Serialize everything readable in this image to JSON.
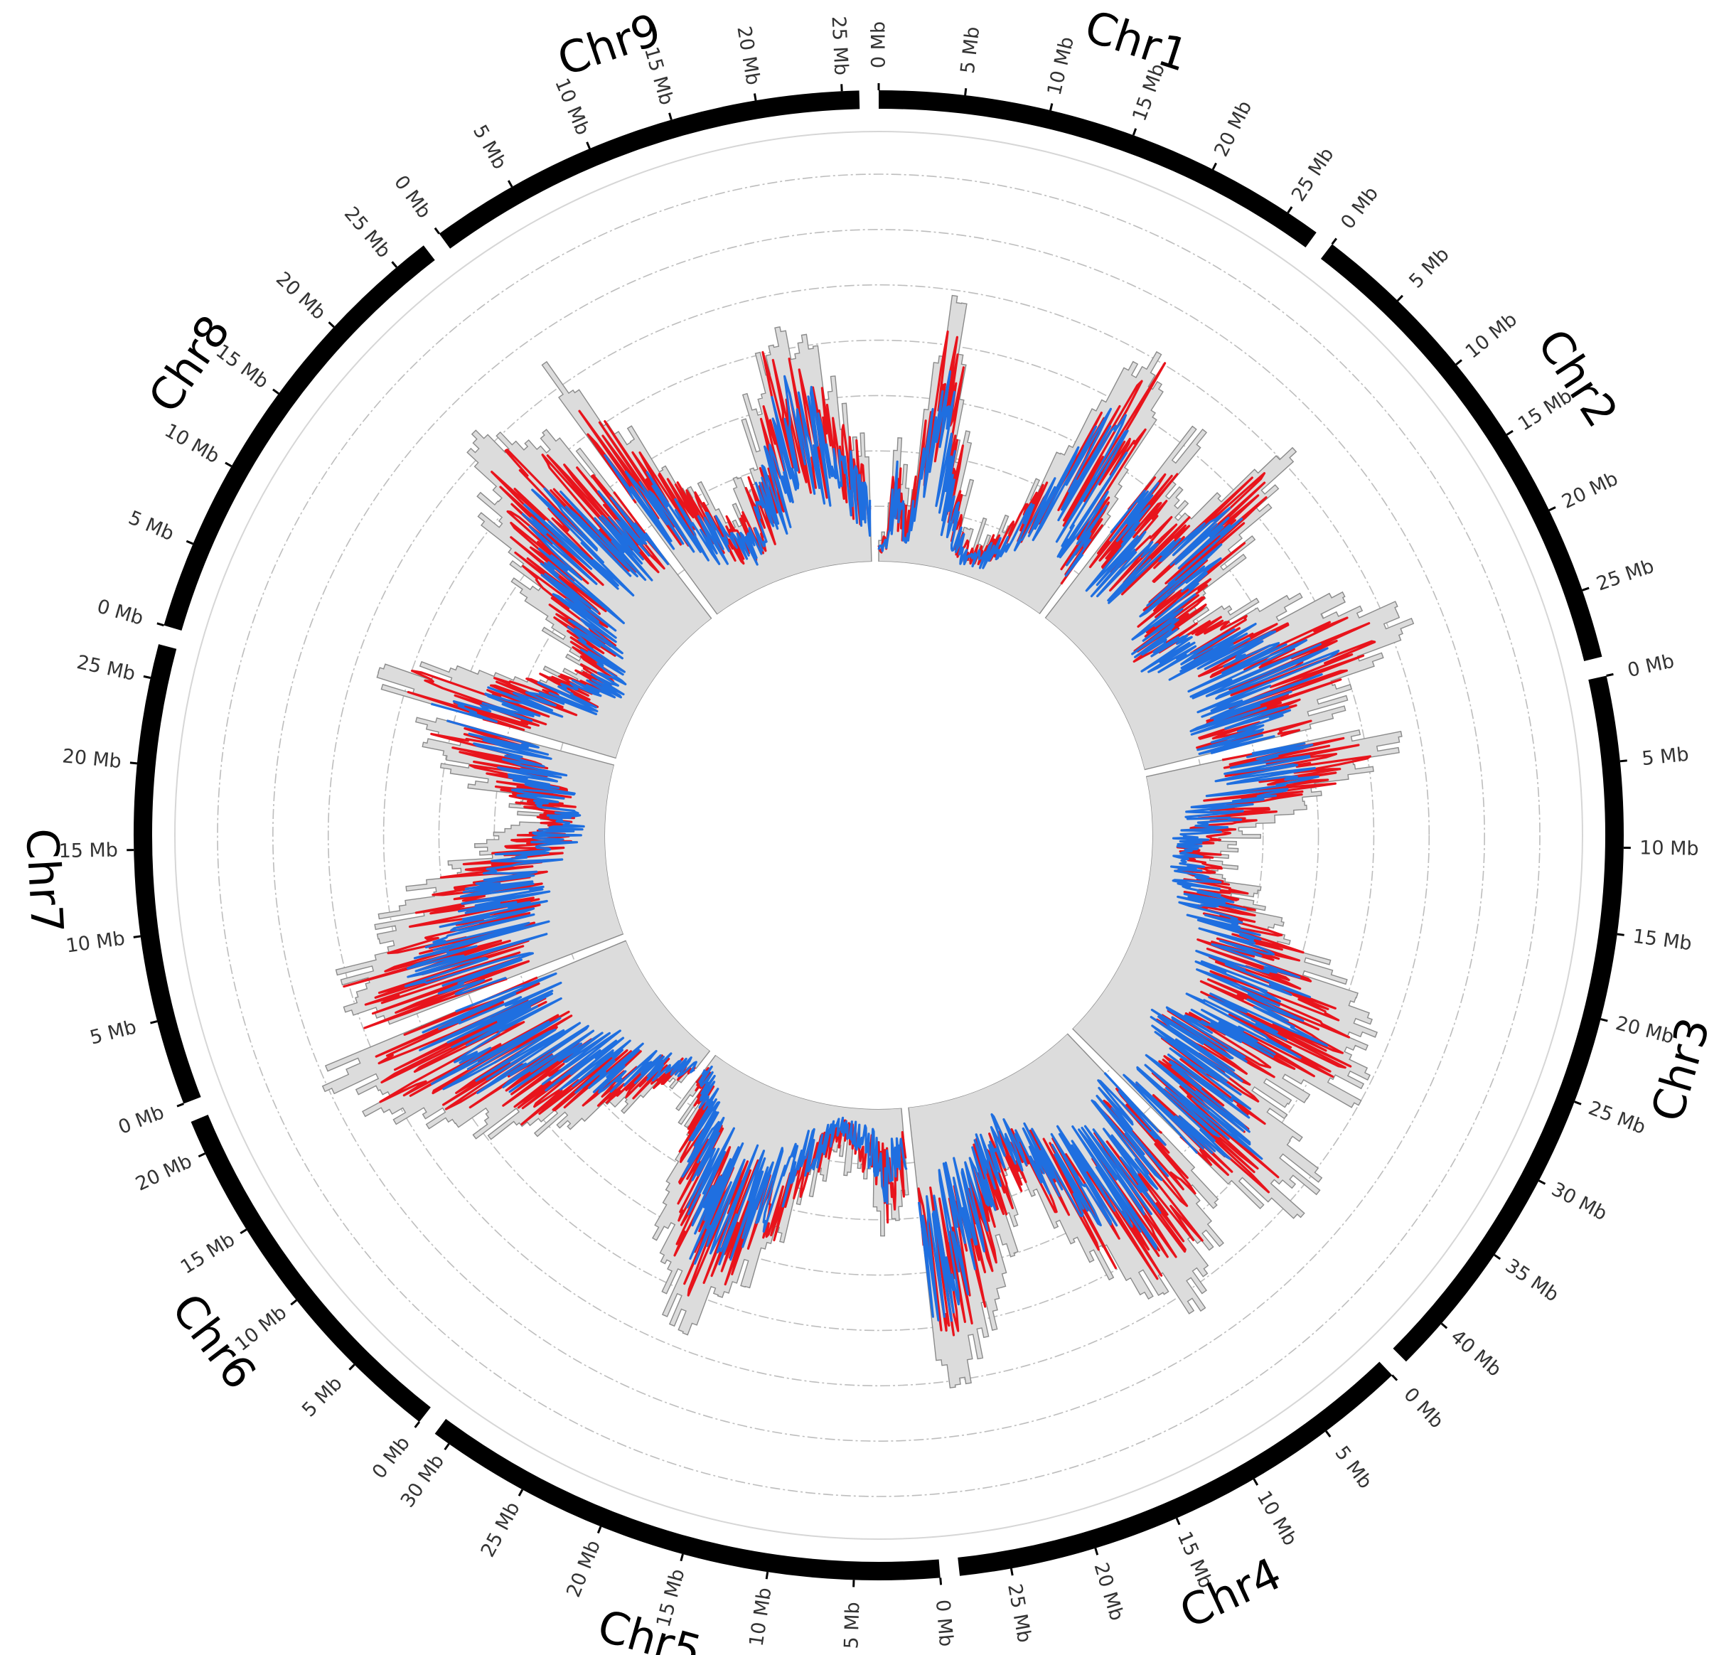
{
  "chart_data": {
    "type": "circos",
    "unit_label": "Mb",
    "chromosomes": [
      {
        "name": "Chr1",
        "length": 27,
        "ticks": [
          "0 Mb",
          "5 Mb",
          "10 Mb",
          "15 Mb",
          "20 Mb",
          "25 Mb"
        ]
      },
      {
        "name": "Chr2",
        "length": 29,
        "ticks": [
          "0 Mb",
          "5 Mb",
          "10 Mb",
          "15 Mb",
          "20 Mb",
          "25 Mb"
        ]
      },
      {
        "name": "Chr3",
        "length": 43,
        "ticks": [
          "0 Mb",
          "5 Mb",
          "10 Mb",
          "15 Mb",
          "20 Mb",
          "25 Mb",
          "30 Mb",
          "35 Mb",
          "40 Mb"
        ]
      },
      {
        "name": "Chr4",
        "length": 28,
        "ticks": [
          "0 Mb",
          "5 Mb",
          "10 Mb",
          "15 Mb",
          "20 Mb",
          "25 Mb"
        ]
      },
      {
        "name": "Chr5",
        "length": 31,
        "ticks": [
          "0 Mb",
          "5 Mb",
          "10 Mb",
          "15 Mb",
          "20 Mb",
          "25 Mb",
          "30 Mb"
        ]
      },
      {
        "name": "Chr6",
        "length": 22,
        "ticks": [
          "0 Mb",
          "5 Mb",
          "10 Mb",
          "15 Mb",
          "20 Mb"
        ]
      },
      {
        "name": "Chr7",
        "length": 27,
        "ticks": [
          "0 Mb",
          "5 Mb",
          "10 Mb",
          "15 Mb",
          "20 Mb",
          "25 Mb"
        ]
      },
      {
        "name": "Chr8",
        "length": 27,
        "ticks": [
          "0 Mb",
          "5 Mb",
          "10 Mb",
          "15 Mb",
          "20 Mb",
          "25 Mb"
        ]
      },
      {
        "name": "Chr9",
        "length": 26,
        "ticks": [
          "0 Mb",
          "5 Mb",
          "10 Mb",
          "15 Mb",
          "20 Mb",
          "25 Mb"
        ]
      }
    ],
    "tracks": [
      {
        "kind": "histogram",
        "color": "#dcdcdc",
        "edge": "#8a8a8a",
        "range": [
          0,
          1
        ]
      },
      {
        "kind": "line",
        "color": "#e8141c",
        "range": [
          0,
          1
        ]
      },
      {
        "kind": "line",
        "color": "#1f6fe0",
        "range": [
          0,
          1
        ]
      }
    ],
    "grid_rings": 7,
    "profiles": {
      "Chr1": [
        0.05,
        0.08,
        0.35,
        0.2,
        0.15,
        0.5,
        0.75,
        0.6,
        0.4,
        0.3,
        0.22,
        0.15,
        0.1,
        0.08,
        0.1,
        0.12,
        0.15,
        0.2,
        0.3,
        0.45,
        0.6,
        0.7,
        0.75,
        0.68,
        0.55,
        0.4,
        0.3
      ],
      "Chr2": [
        0.55,
        0.6,
        0.5,
        0.45,
        0.4,
        0.5,
        0.62,
        0.7,
        0.68,
        0.6,
        0.5,
        0.42,
        0.35,
        0.3,
        0.32,
        0.38,
        0.45,
        0.5,
        0.58,
        0.62,
        0.68,
        0.72,
        0.75,
        0.7,
        0.62,
        0.55,
        0.5,
        0.48,
        0.45
      ],
      "Chr3": [
        0.55,
        0.6,
        0.62,
        0.58,
        0.5,
        0.42,
        0.35,
        0.3,
        0.26,
        0.22,
        0.2,
        0.18,
        0.17,
        0.18,
        0.2,
        0.23,
        0.27,
        0.3,
        0.33,
        0.38,
        0.42,
        0.45,
        0.5,
        0.55,
        0.6,
        0.62,
        0.66,
        0.68,
        0.7,
        0.7,
        0.68,
        0.62,
        0.55,
        0.5,
        0.52,
        0.58,
        0.62,
        0.68,
        0.7,
        0.72,
        0.7,
        0.65,
        0.6
      ],
      "Chr4": [
        0.5,
        0.55,
        0.6,
        0.62,
        0.66,
        0.68,
        0.7,
        0.72,
        0.7,
        0.66,
        0.6,
        0.55,
        0.48,
        0.42,
        0.35,
        0.3,
        0.28,
        0.3,
        0.35,
        0.4,
        0.45,
        0.5,
        0.55,
        0.6,
        0.65,
        0.7,
        0.72,
        0.7
      ],
      "Chr5": [
        0.2,
        0.25,
        0.3,
        0.28,
        0.22,
        0.18,
        0.15,
        0.12,
        0.1,
        0.12,
        0.15,
        0.2,
        0.25,
        0.3,
        0.38,
        0.45,
        0.5,
        0.55,
        0.6,
        0.62,
        0.64,
        0.6,
        0.55,
        0.5,
        0.45,
        0.4,
        0.32,
        0.25,
        0.18,
        0.12,
        0.1
      ],
      "Chr6": [
        0.1,
        0.12,
        0.15,
        0.2,
        0.25,
        0.3,
        0.35,
        0.38,
        0.42,
        0.46,
        0.5,
        0.54,
        0.58,
        0.62,
        0.66,
        0.7,
        0.72,
        0.75,
        0.78,
        0.8,
        0.82,
        0.8
      ],
      "Chr7": [
        0.7,
        0.72,
        0.74,
        0.75,
        0.72,
        0.68,
        0.62,
        0.58,
        0.55,
        0.52,
        0.48,
        0.45,
        0.4,
        0.35,
        0.3,
        0.25,
        0.2,
        0.18,
        0.2,
        0.25,
        0.3,
        0.35,
        0.38,
        0.42,
        0.46,
        0.5,
        0.55
      ],
      "Chr8": [
        0.6,
        0.62,
        0.58,
        0.5,
        0.42,
        0.35,
        0.3,
        0.25,
        0.2,
        0.18,
        0.2,
        0.25,
        0.3,
        0.35,
        0.42,
        0.48,
        0.55,
        0.6,
        0.65,
        0.7,
        0.72,
        0.74,
        0.72,
        0.68,
        0.62,
        0.55,
        0.5
      ],
      "Chr9": [
        0.75,
        0.7,
        0.6,
        0.5,
        0.42,
        0.35,
        0.3,
        0.25,
        0.22,
        0.2,
        0.22,
        0.25,
        0.3,
        0.35,
        0.42,
        0.5,
        0.55,
        0.6,
        0.62,
        0.6,
        0.55,
        0.5,
        0.42,
        0.35,
        0.3,
        0.25
      ]
    }
  }
}
